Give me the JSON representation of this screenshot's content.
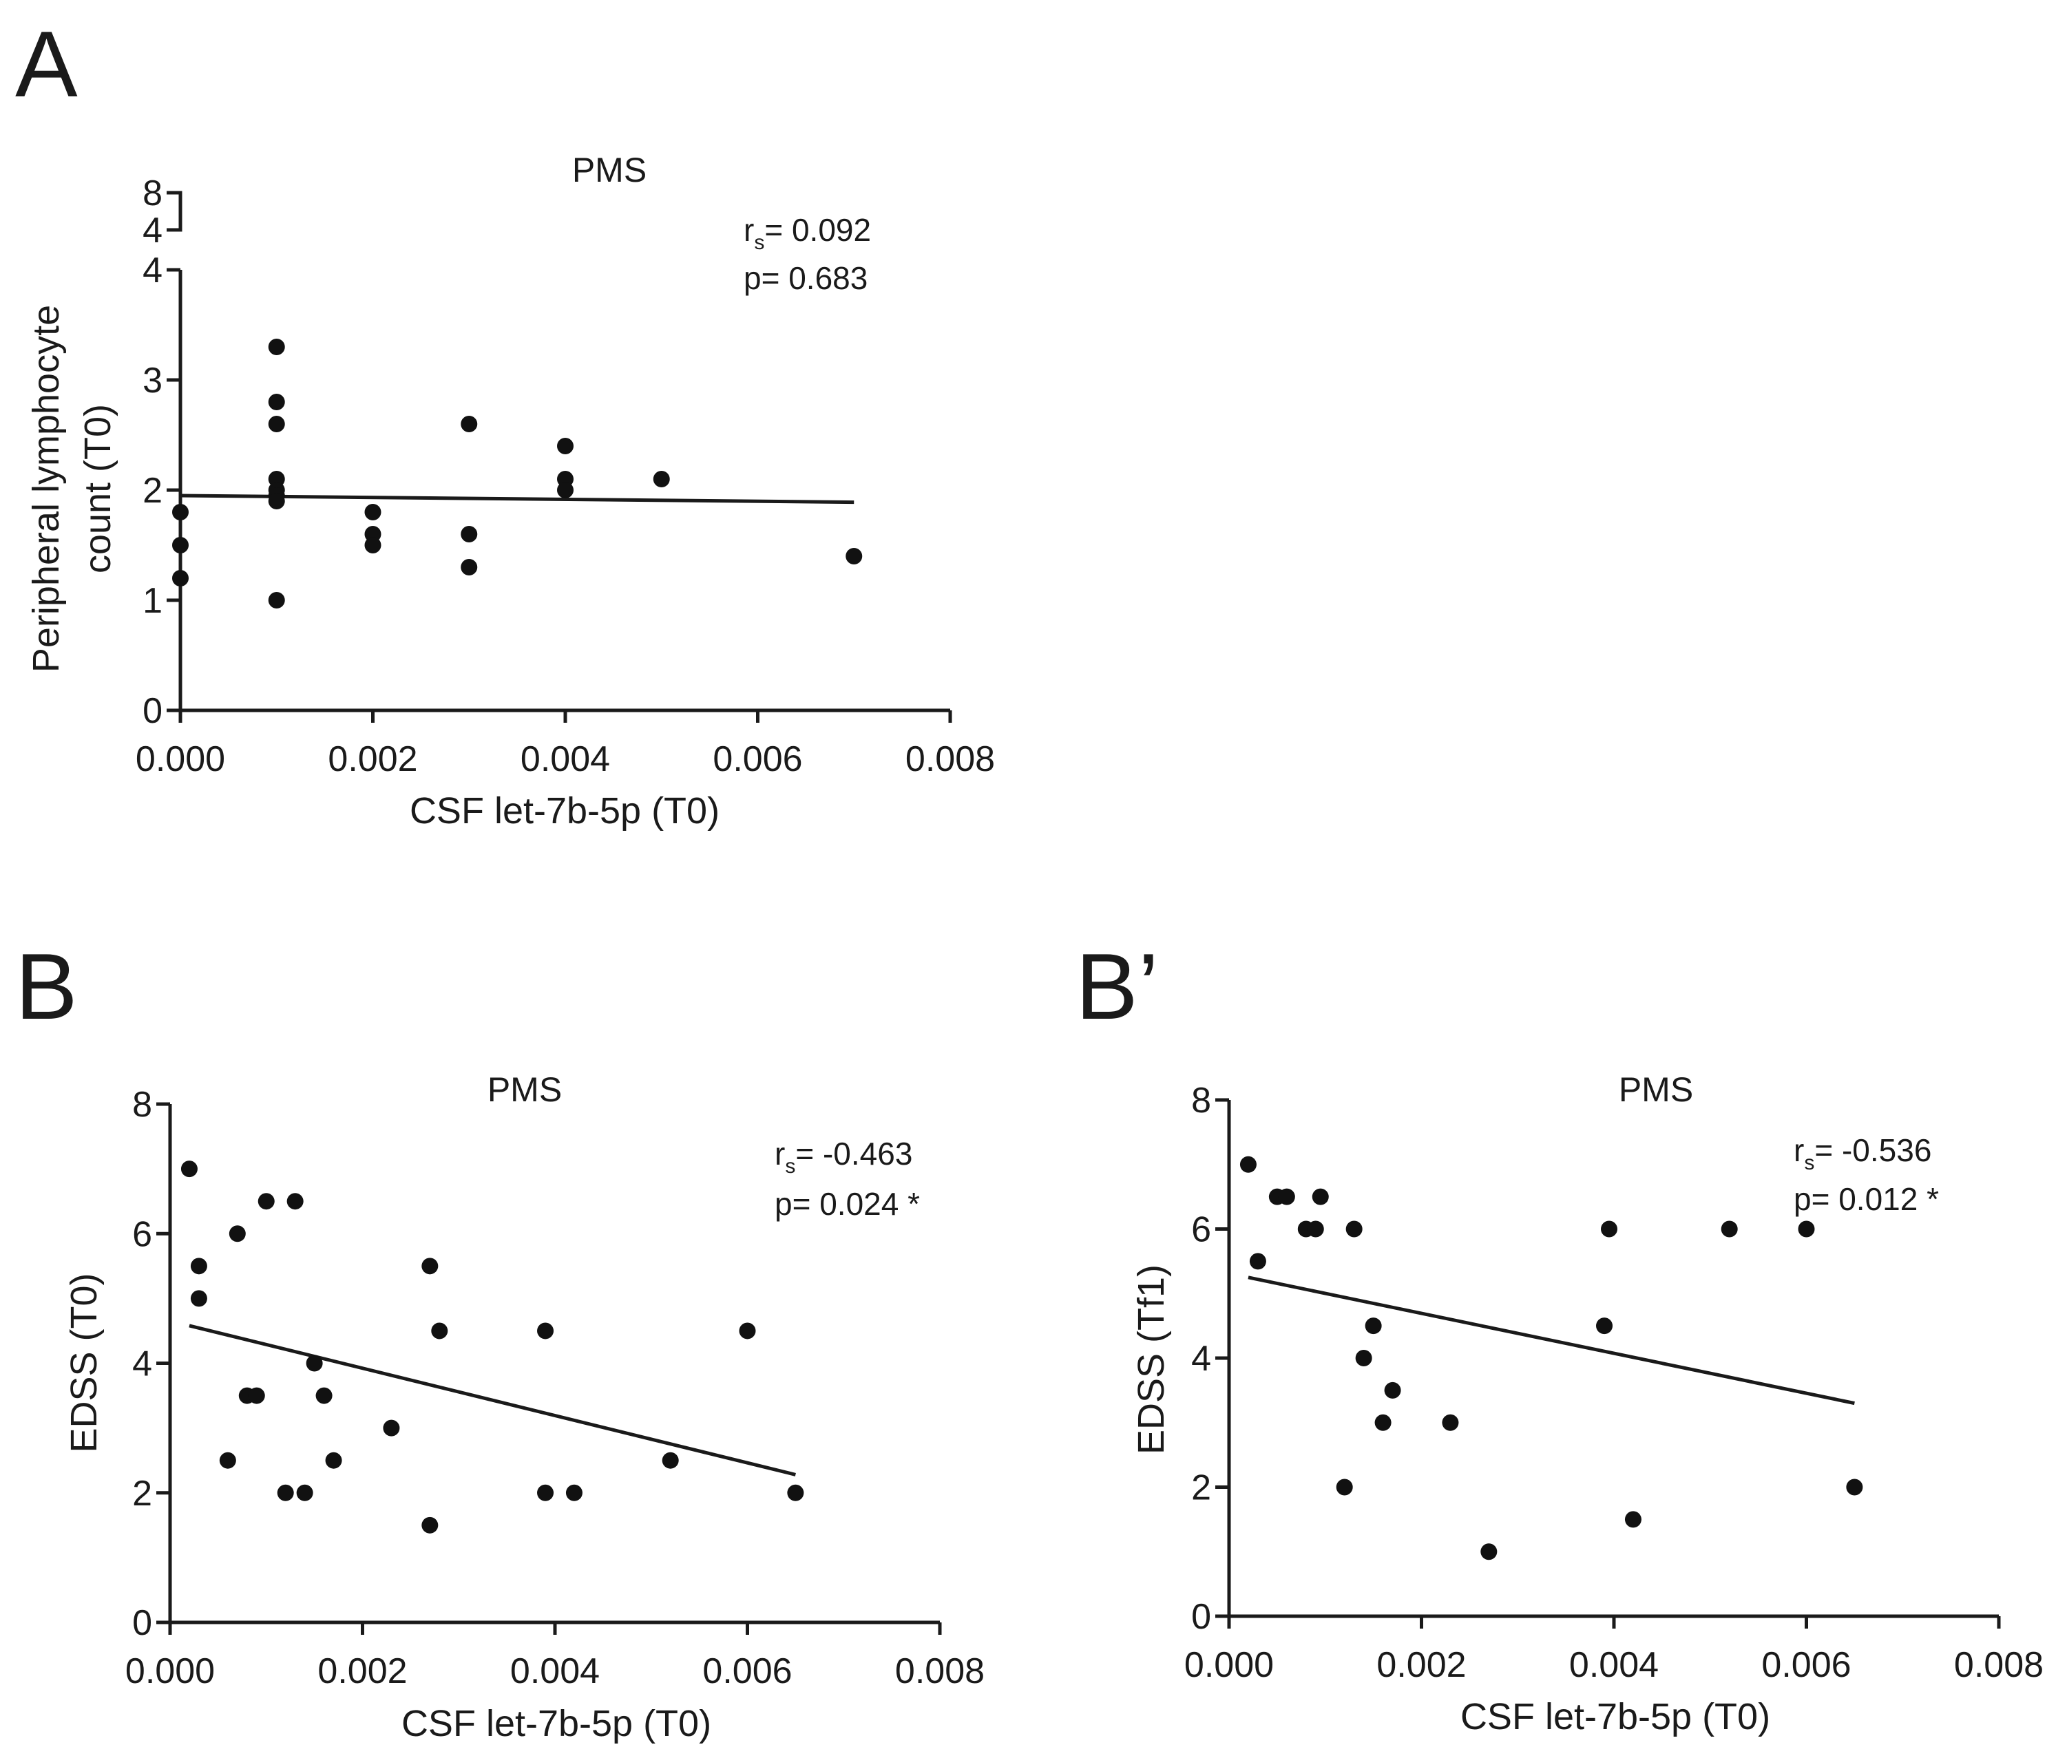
{
  "chart_data": [
    {
      "type": "scatter",
      "panel_label": "A",
      "title": "PMS",
      "xlabel": "CSF let-7b-5p (T0)",
      "ylabel": [
        "Peripheral lymphocyte",
        "count (T0)"
      ],
      "xlim": [
        0,
        0.008
      ],
      "ylim": [
        0,
        4
      ],
      "x_ticks": [
        "0.000",
        "0.002",
        "0.004",
        "0.006",
        "0.008"
      ],
      "y_ticks": [
        "0",
        "1",
        "2",
        "3",
        "4"
      ],
      "y_break_ticks": [
        "8",
        "4"
      ],
      "stats": {
        "r_prefix": "r",
        "r_sub": "s",
        "r_value": "= 0.092",
        "p_text": "p= 0.683"
      },
      "fit_line": {
        "x": [
          0,
          0.007
        ],
        "y": [
          1.95,
          1.89
        ]
      },
      "series": [
        {
          "x": [
            0,
            0,
            0,
            0.001,
            0.001,
            0.001,
            0.001,
            0.001,
            0.001,
            0.001,
            0.001,
            0.002,
            0.002,
            0.002,
            0.003,
            0.003,
            0.003,
            0.004,
            0.004,
            0.004,
            0.005,
            0.007
          ],
          "y": [
            1.8,
            1.5,
            1.2,
            3.3,
            2.8,
            2.6,
            2.1,
            2.0,
            1.95,
            1.9,
            1.0,
            1.8,
            1.6,
            1.5,
            2.6,
            1.6,
            1.3,
            2.4,
            2.1,
            2.0,
            2.1,
            1.4
          ]
        }
      ]
    },
    {
      "type": "scatter",
      "panel_label": "B",
      "title": "PMS",
      "xlabel": "CSF let-7b-5p (T0)",
      "ylabel": [
        "EDSS (T0)"
      ],
      "xlim": [
        0,
        0.008
      ],
      "ylim": [
        0,
        8
      ],
      "x_ticks": [
        "0.000",
        "0.002",
        "0.004",
        "0.006",
        "0.008"
      ],
      "y_ticks": [
        "0",
        "2",
        "4",
        "6",
        "8"
      ],
      "stats": {
        "r_prefix": "r",
        "r_sub": "s",
        "r_value": "= -0.463",
        "p_text": "p= 0.024 *"
      },
      "fit_line": {
        "x": [
          0.0002,
          0.0065
        ],
        "y": [
          4.58,
          2.28
        ]
      },
      "series": [
        {
          "x": [
            0.0002,
            0.0003,
            0.0003,
            0.0006,
            0.0007,
            0.0008,
            0.0009,
            0.001,
            0.0012,
            0.0013,
            0.0014,
            0.0015,
            0.0016,
            0.0017,
            0.0023,
            0.0027,
            0.0027,
            0.0028,
            0.0039,
            0.0039,
            0.0042,
            0.0052,
            0.006,
            0.0065
          ],
          "y": [
            7.0,
            5.5,
            5.0,
            2.5,
            6.0,
            3.5,
            3.5,
            6.5,
            2.0,
            6.5,
            2.0,
            4.0,
            3.5,
            2.5,
            3.0,
            5.5,
            1.5,
            4.5,
            4.5,
            2.0,
            2.0,
            2.5,
            4.5,
            2.0
          ]
        }
      ]
    },
    {
      "type": "scatter",
      "panel_label": "B’",
      "title": "PMS",
      "xlabel": "CSF let-7b-5p (T0)",
      "ylabel": [
        "EDSS (Tf1)"
      ],
      "xlim": [
        0,
        0.008
      ],
      "ylim": [
        0,
        8
      ],
      "x_ticks": [
        "0.000",
        "0.002",
        "0.004",
        "0.006",
        "0.008"
      ],
      "y_ticks": [
        "0",
        "2",
        "4",
        "6",
        "8"
      ],
      "stats": {
        "r_prefix": "r",
        "r_sub": "s",
        "r_value": "= -0.536",
        "p_text": "p= 0.012 *"
      },
      "fit_line": {
        "x": [
          0.0002,
          0.0065
        ],
        "y": [
          5.25,
          3.3
        ]
      },
      "series": [
        {
          "x": [
            0.0002,
            0.0003,
            0.0005,
            0.0006,
            0.0008,
            0.0009,
            0.00095,
            0.0012,
            0.0013,
            0.0014,
            0.0015,
            0.0016,
            0.0017,
            0.0023,
            0.0027,
            0.0039,
            0.00395,
            0.0042,
            0.0052,
            0.006,
            0.0065
          ],
          "y": [
            7.0,
            5.5,
            6.5,
            6.5,
            6.0,
            6.0,
            6.5,
            2.0,
            6.0,
            4.0,
            4.5,
            3.0,
            3.5,
            3.0,
            1.0,
            4.5,
            6.0,
            1.5,
            6.0,
            6.0,
            2.0
          ]
        }
      ]
    }
  ]
}
